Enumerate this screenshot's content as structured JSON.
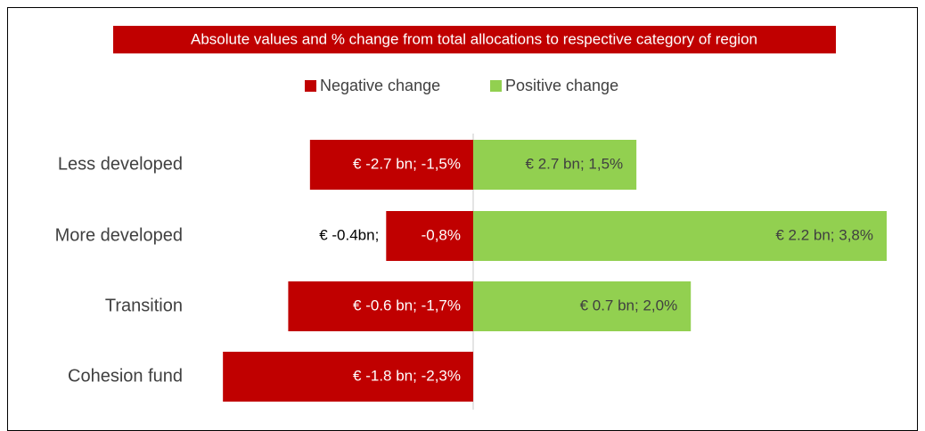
{
  "chart_data": {
    "type": "diverging-bar",
    "title": "Absolute values and % change from total allocations to respective category of  region",
    "categories": [
      "Less developed",
      "More developed",
      "Transition",
      "Cohesion fund"
    ],
    "series": [
      {
        "name": "Negative change",
        "color": "#c00000",
        "values": [
          -1.5,
          -0.8,
          -1.7,
          -2.3
        ],
        "value_labels": [
          "€ -2.7 bn; -1,5%",
          [
            "€ -0.4bn;",
            "-0,8%"
          ],
          "€ -0.6 bn; -1,7%",
          "€ -1.8 bn; -2,3%"
        ]
      },
      {
        "name": "Positive change",
        "color": "#92d050",
        "values": [
          1.5,
          3.8,
          2.0,
          null
        ],
        "value_labels": [
          "€ 2.7 bn; 1,5%",
          "€ 2.2 bn; 3,8%",
          "€ 0.7 bn; 2,0%",
          null
        ]
      }
    ],
    "legend": "top"
  }
}
